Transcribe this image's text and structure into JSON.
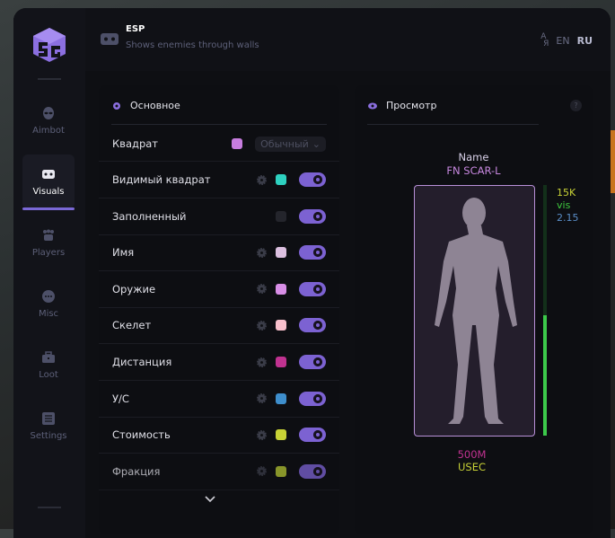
{
  "sidebar": {
    "items": [
      {
        "label": "Aimbot",
        "icon": "alien-icon",
        "active": false
      },
      {
        "label": "Visuals",
        "icon": "vr-headset-icon",
        "active": true
      },
      {
        "label": "Players",
        "icon": "users-icon",
        "active": false
      },
      {
        "label": "Misc",
        "icon": "dots-icon",
        "active": false
      },
      {
        "label": "Loot",
        "icon": "toolbox-icon",
        "active": false
      },
      {
        "label": "Settings",
        "icon": "list-icon",
        "active": false
      }
    ]
  },
  "header": {
    "title": "ESP",
    "subtitle": "Shows enemies through walls",
    "lang": [
      "EN",
      "RU"
    ],
    "active_lang": "RU"
  },
  "main": {
    "title": "Основное",
    "select_value": "Обычный",
    "rows": [
      {
        "label": "Квадрат",
        "color": "#c77ddf",
        "gear": false,
        "select": true
      },
      {
        "label": "Видимый квадрат",
        "color": "#2ed1c0",
        "gear": true,
        "on": true
      },
      {
        "label": "Заполненный",
        "color": "#24252c",
        "gear": false,
        "on": true
      },
      {
        "label": "Имя",
        "color": "#dcc0e0",
        "gear": true,
        "on": true
      },
      {
        "label": "Оружие",
        "color": "#d88ee6",
        "gear": true,
        "on": true
      },
      {
        "label": "Скелет",
        "color": "#f8c0cc",
        "gear": true,
        "on": true
      },
      {
        "label": "Дистанция",
        "color": "#c03290",
        "gear": true,
        "on": true
      },
      {
        "label": "У/С",
        "color": "#3e8ecc",
        "gear": true,
        "on": true
      },
      {
        "label": "Стоимость",
        "color": "#c8d236",
        "gear": true,
        "on": true
      },
      {
        "label": "Фракция",
        "color": "#b2c232",
        "gear": true,
        "on": true
      }
    ]
  },
  "preview": {
    "title": "Просмотр",
    "help": "?",
    "name": "Name",
    "weapon": "FN SCAR-L",
    "value": "15K",
    "visible": "vis",
    "kd": "2.15",
    "distance": "500M",
    "faction": "USEC",
    "health_fraction": 0.48,
    "colors": {
      "name": "#d8d0e8",
      "weapon": "#c888e0",
      "value": "#c8d236",
      "visible": "#3ec83e",
      "kd": "#5a8ec8",
      "distance": "#c03290",
      "faction": "#c8d236"
    }
  }
}
